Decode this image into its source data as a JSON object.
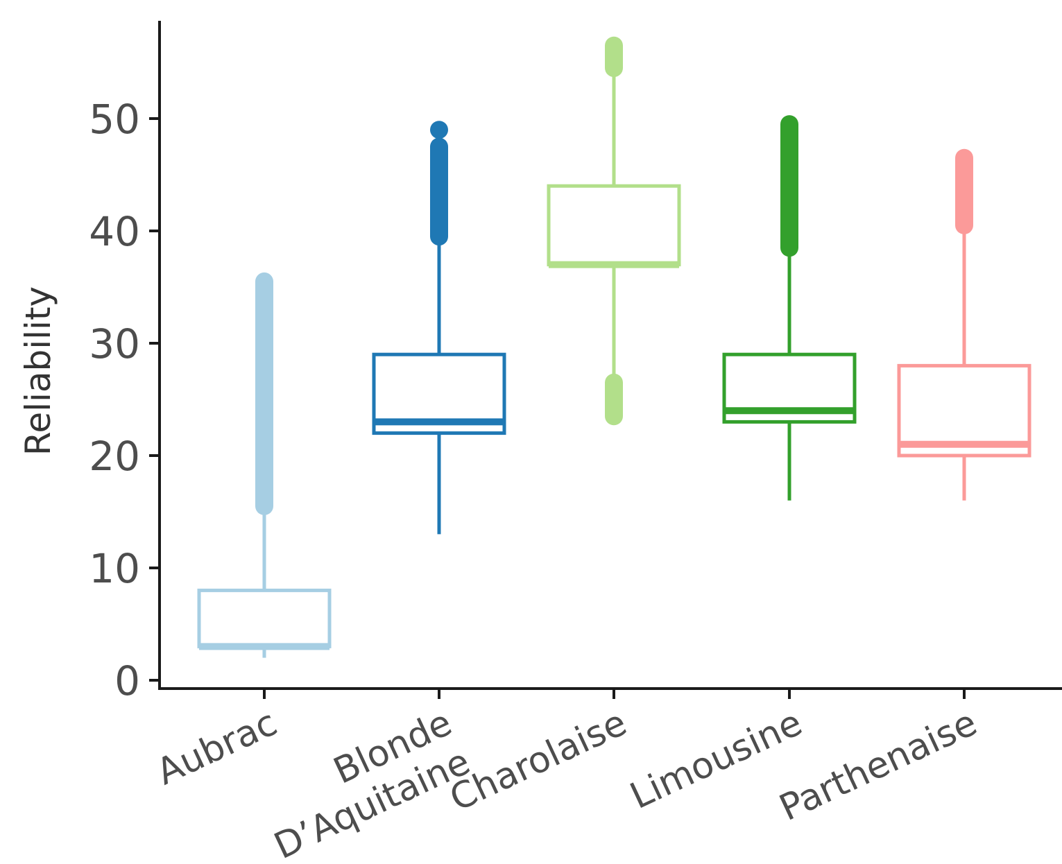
{
  "chart_data": {
    "type": "boxplot",
    "ylabel": "Reliability",
    "xlabel": "",
    "ylim": [
      0,
      58
    ],
    "yticks": [
      0,
      10,
      20,
      30,
      40,
      50
    ],
    "grid": false,
    "legend": "none",
    "categories": [
      "Aubrac",
      "Blonde D’Aquitaine",
      "Charolaise",
      "Limousine",
      "Parthenaise"
    ],
    "boxes": [
      {
        "category": "Aubrac",
        "label_lines": [
          "Aubrac"
        ],
        "color": "#a6cee3",
        "whisker_low": 2,
        "q1": 3,
        "median": 3,
        "q3": 8,
        "whisker_high": 15,
        "outliers_high": [
          15.5,
          35.5
        ],
        "outliers_low": null
      },
      {
        "category": "Blonde D’Aquitaine",
        "label_lines": [
          "Blonde",
          "D’Aquitaine"
        ],
        "color": "#1f78b4",
        "whisker_low": 13,
        "q1": 22,
        "median": 23,
        "q3": 29,
        "whisker_high": 39,
        "outliers_high": [
          39.5,
          47.5
        ],
        "outlier_points": [
          49
        ],
        "outliers_low": null
      },
      {
        "category": "Charolaise",
        "label_lines": [
          "Charolaise"
        ],
        "color": "#b2df8a",
        "whisker_low": 27,
        "q1": 37,
        "median": 37,
        "q3": 44,
        "whisker_high": 54,
        "outliers_high": [
          54.5,
          56.5
        ],
        "outliers_low": [
          23.5,
          26.5
        ]
      },
      {
        "category": "Limousine",
        "label_lines": [
          "Limousine"
        ],
        "color": "#33a02c",
        "whisker_low": 16,
        "q1": 23,
        "median": 24,
        "q3": 29,
        "whisker_high": 38,
        "outliers_high": [
          38.5,
          49.5
        ],
        "outliers_low": null
      },
      {
        "category": "Parthenaise",
        "label_lines": [
          "Parthenaise"
        ],
        "color": "#fb9a99",
        "whisker_low": 16,
        "q1": 20,
        "median": 21,
        "q3": 28,
        "whisker_high": 40,
        "outliers_high": [
          40.5,
          46.5
        ],
        "outliers_low": null
      }
    ]
  }
}
